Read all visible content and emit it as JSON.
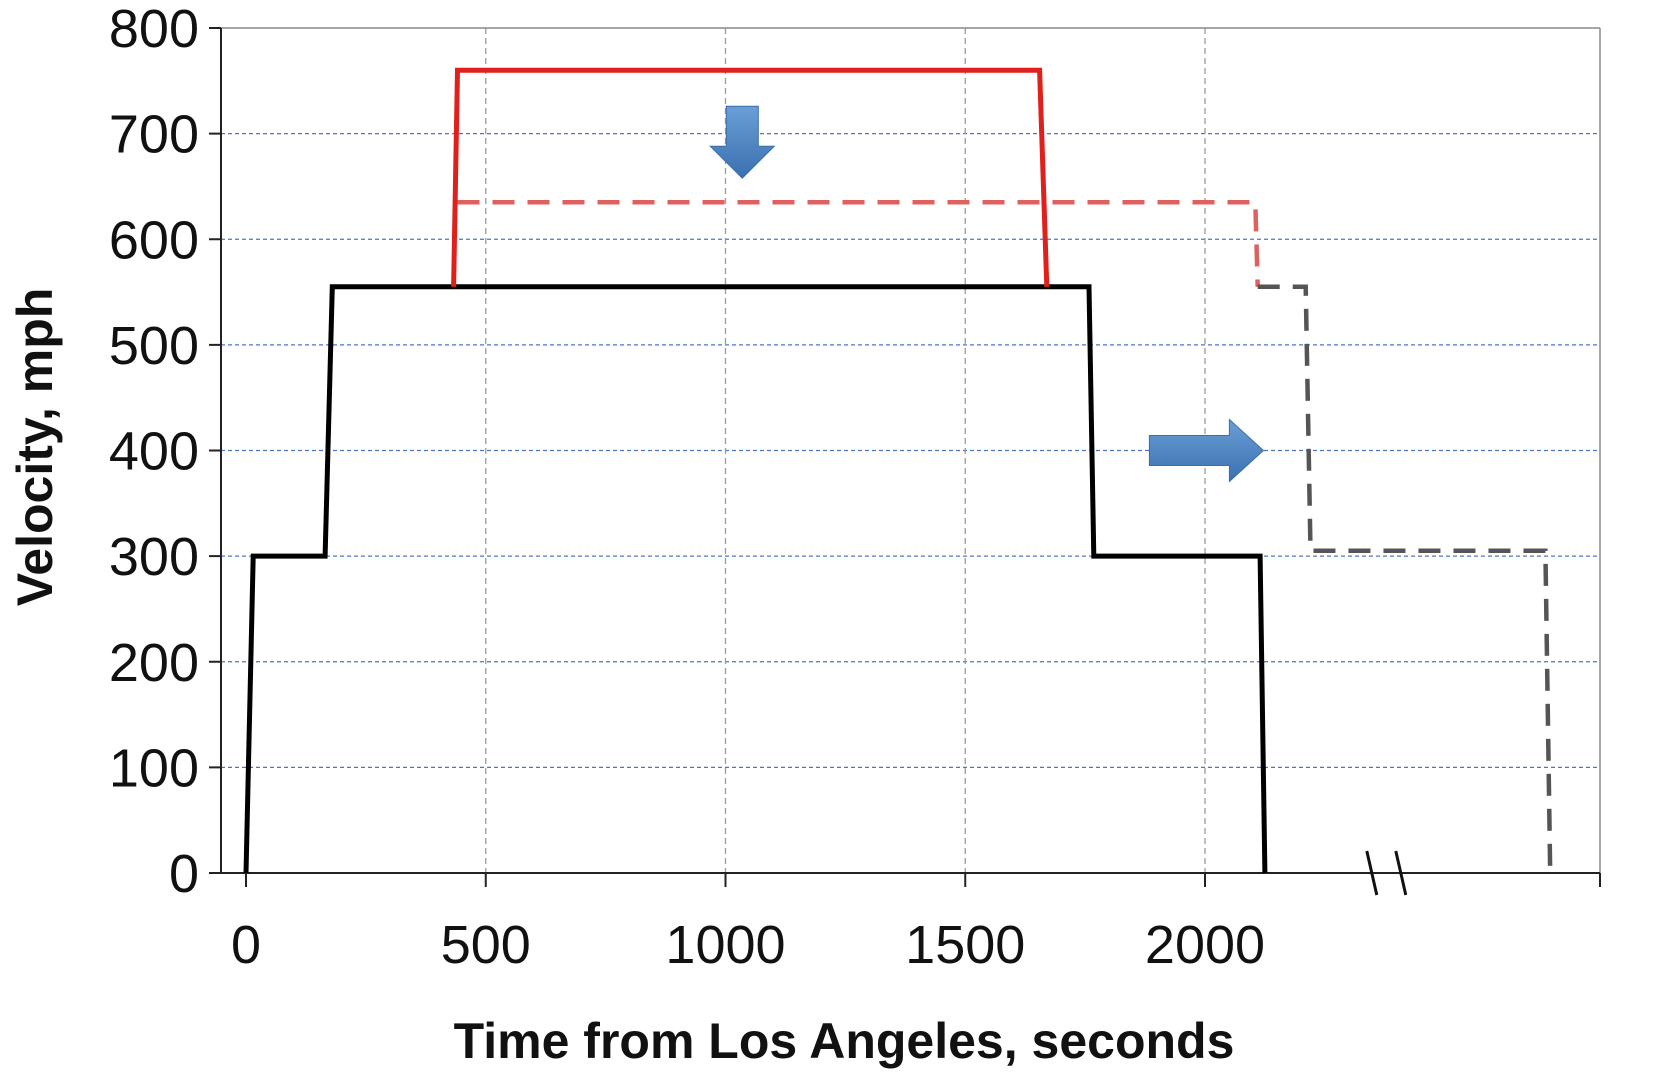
{
  "chart_data": {
    "type": "line",
    "title": "",
    "xlabel": "Time from Los Angeles, seconds",
    "ylabel": "Velocity, mph",
    "xlim": [
      -100,
      2950
    ],
    "ylim": [
      0,
      800
    ],
    "x_ticks": [
      0,
      500,
      1000,
      1500,
      2000
    ],
    "x_tick_labels": [
      "0",
      "500",
      "1000",
      "1500",
      "2000"
    ],
    "y_ticks": [
      0,
      100,
      200,
      300,
      400,
      500,
      600,
      700,
      800
    ],
    "y_tick_labels": [
      "0",
      "100",
      "200",
      "300",
      "400",
      "500",
      "600",
      "700",
      "800"
    ],
    "x_grid_values": [
      500,
      1000,
      1500,
      2000
    ],
    "y_grid_values": [
      100,
      200,
      300,
      400,
      500,
      600,
      700
    ],
    "axis_break_x": 2400,
    "grid": true,
    "legend": "none",
    "series": [
      {
        "style": "solid",
        "color": "#000000",
        "x": [
          0,
          15,
          165,
          180,
          433,
          1670,
          1758,
          1768,
          2115,
          2125
        ],
        "y": [
          0,
          300,
          300,
          555,
          555,
          555,
          555,
          300,
          300,
          0
        ]
      },
      {
        "style": "solid",
        "color": "#e0201a",
        "x": [
          433,
          441,
          1655,
          1670
        ],
        "y": [
          555,
          760,
          760,
          555
        ]
      },
      {
        "style": "dashed",
        "color": "#e06060",
        "x": [
          441,
          2105,
          2110
        ],
        "y": [
          635,
          635,
          555
        ]
      },
      {
        "style": "dashed",
        "color": "#555555",
        "x": [
          2110,
          2210,
          2220,
          2710,
          2720
        ],
        "y": [
          555,
          555,
          305,
          305,
          0
        ]
      }
    ],
    "annotations": [
      {
        "type": "arrow-down",
        "color": "#4a82c0",
        "x": 1035,
        "y": 690
      },
      {
        "type": "arrow-right",
        "color": "#4a82c0",
        "x": 2005,
        "y": 400
      }
    ]
  }
}
